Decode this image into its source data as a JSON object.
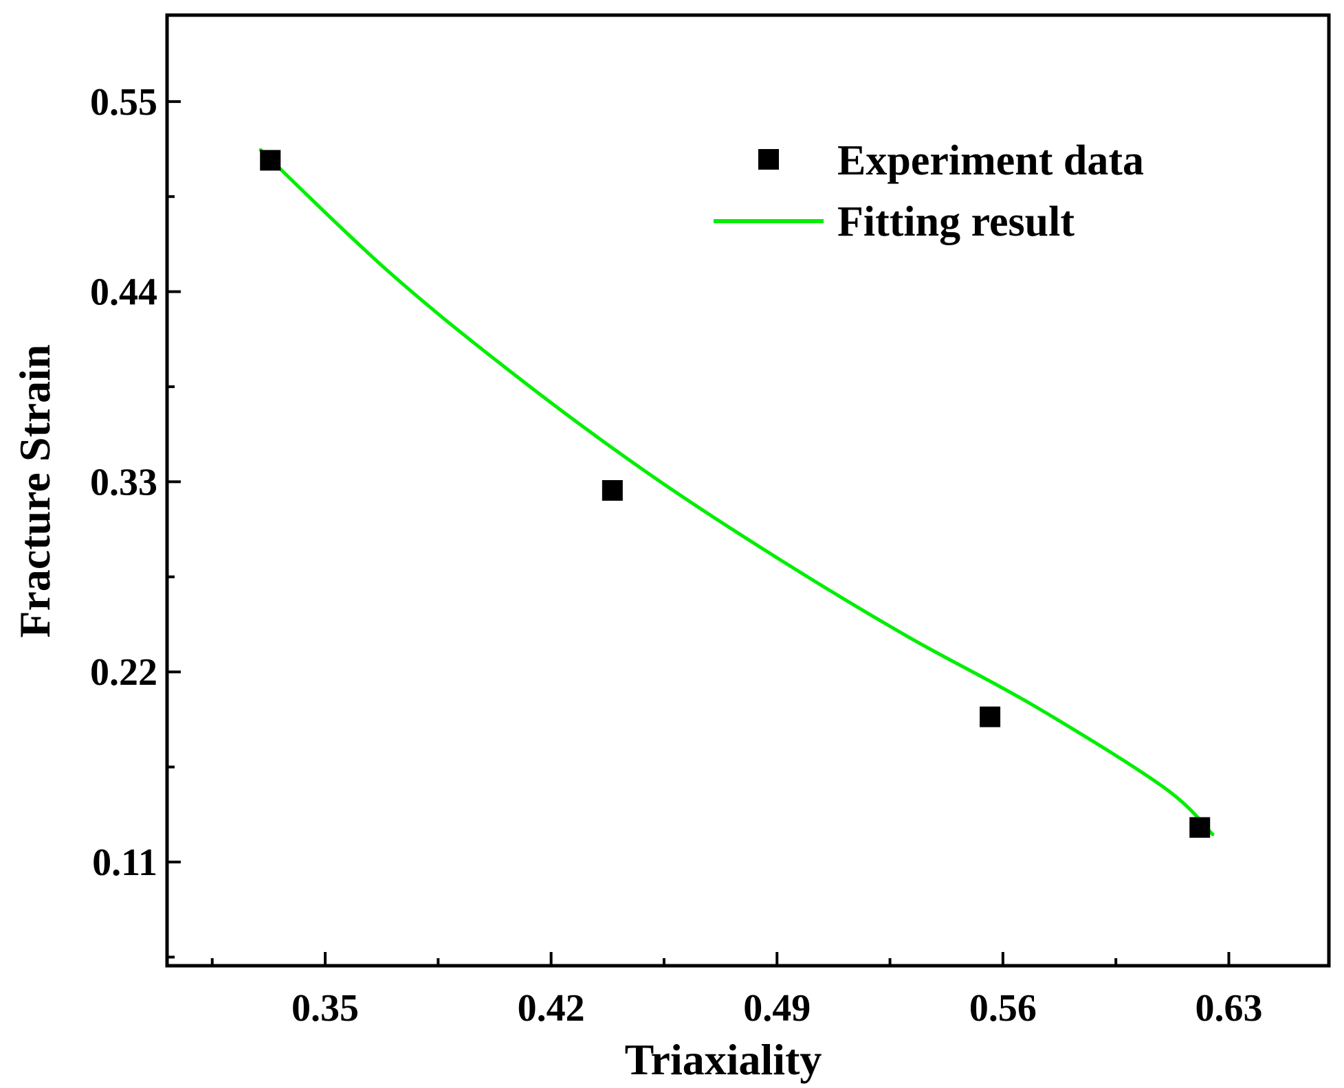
{
  "chart_data": {
    "type": "scatter",
    "title": "",
    "xlabel": "Triaxiality",
    "ylabel": "Fracture Strain",
    "xlim": [
      0.301,
      0.661
    ],
    "ylim": [
      0.05,
      0.6
    ],
    "xticks": [
      0.35,
      0.42,
      0.49,
      0.56,
      0.63
    ],
    "xtick_labels": [
      "0.35",
      "0.42",
      "0.49",
      "0.56",
      "0.63"
    ],
    "yticks": [
      0.11,
      0.22,
      0.33,
      0.44,
      0.55
    ],
    "ytick_labels": [
      "0.11",
      "0.22",
      "0.33",
      "0.44",
      "0.55"
    ],
    "grid": false,
    "legend_position": "top-right",
    "series": [
      {
        "name": "Experiment data",
        "kind": "scatter",
        "marker": "square",
        "color": "#000000",
        "x": [
          0.333,
          0.439,
          0.556,
          0.621
        ],
        "y": [
          0.516,
          0.325,
          0.194,
          0.13
        ]
      },
      {
        "name": "Fitting result",
        "kind": "line",
        "color": "#00ee00",
        "x": [
          0.33,
          0.37,
          0.41,
          0.45,
          0.49,
          0.53,
          0.57,
          0.61,
          0.625
        ],
        "y": [
          0.522,
          0.451,
          0.39,
          0.335,
          0.286,
          0.241,
          0.2,
          0.153,
          0.126
        ]
      }
    ]
  }
}
